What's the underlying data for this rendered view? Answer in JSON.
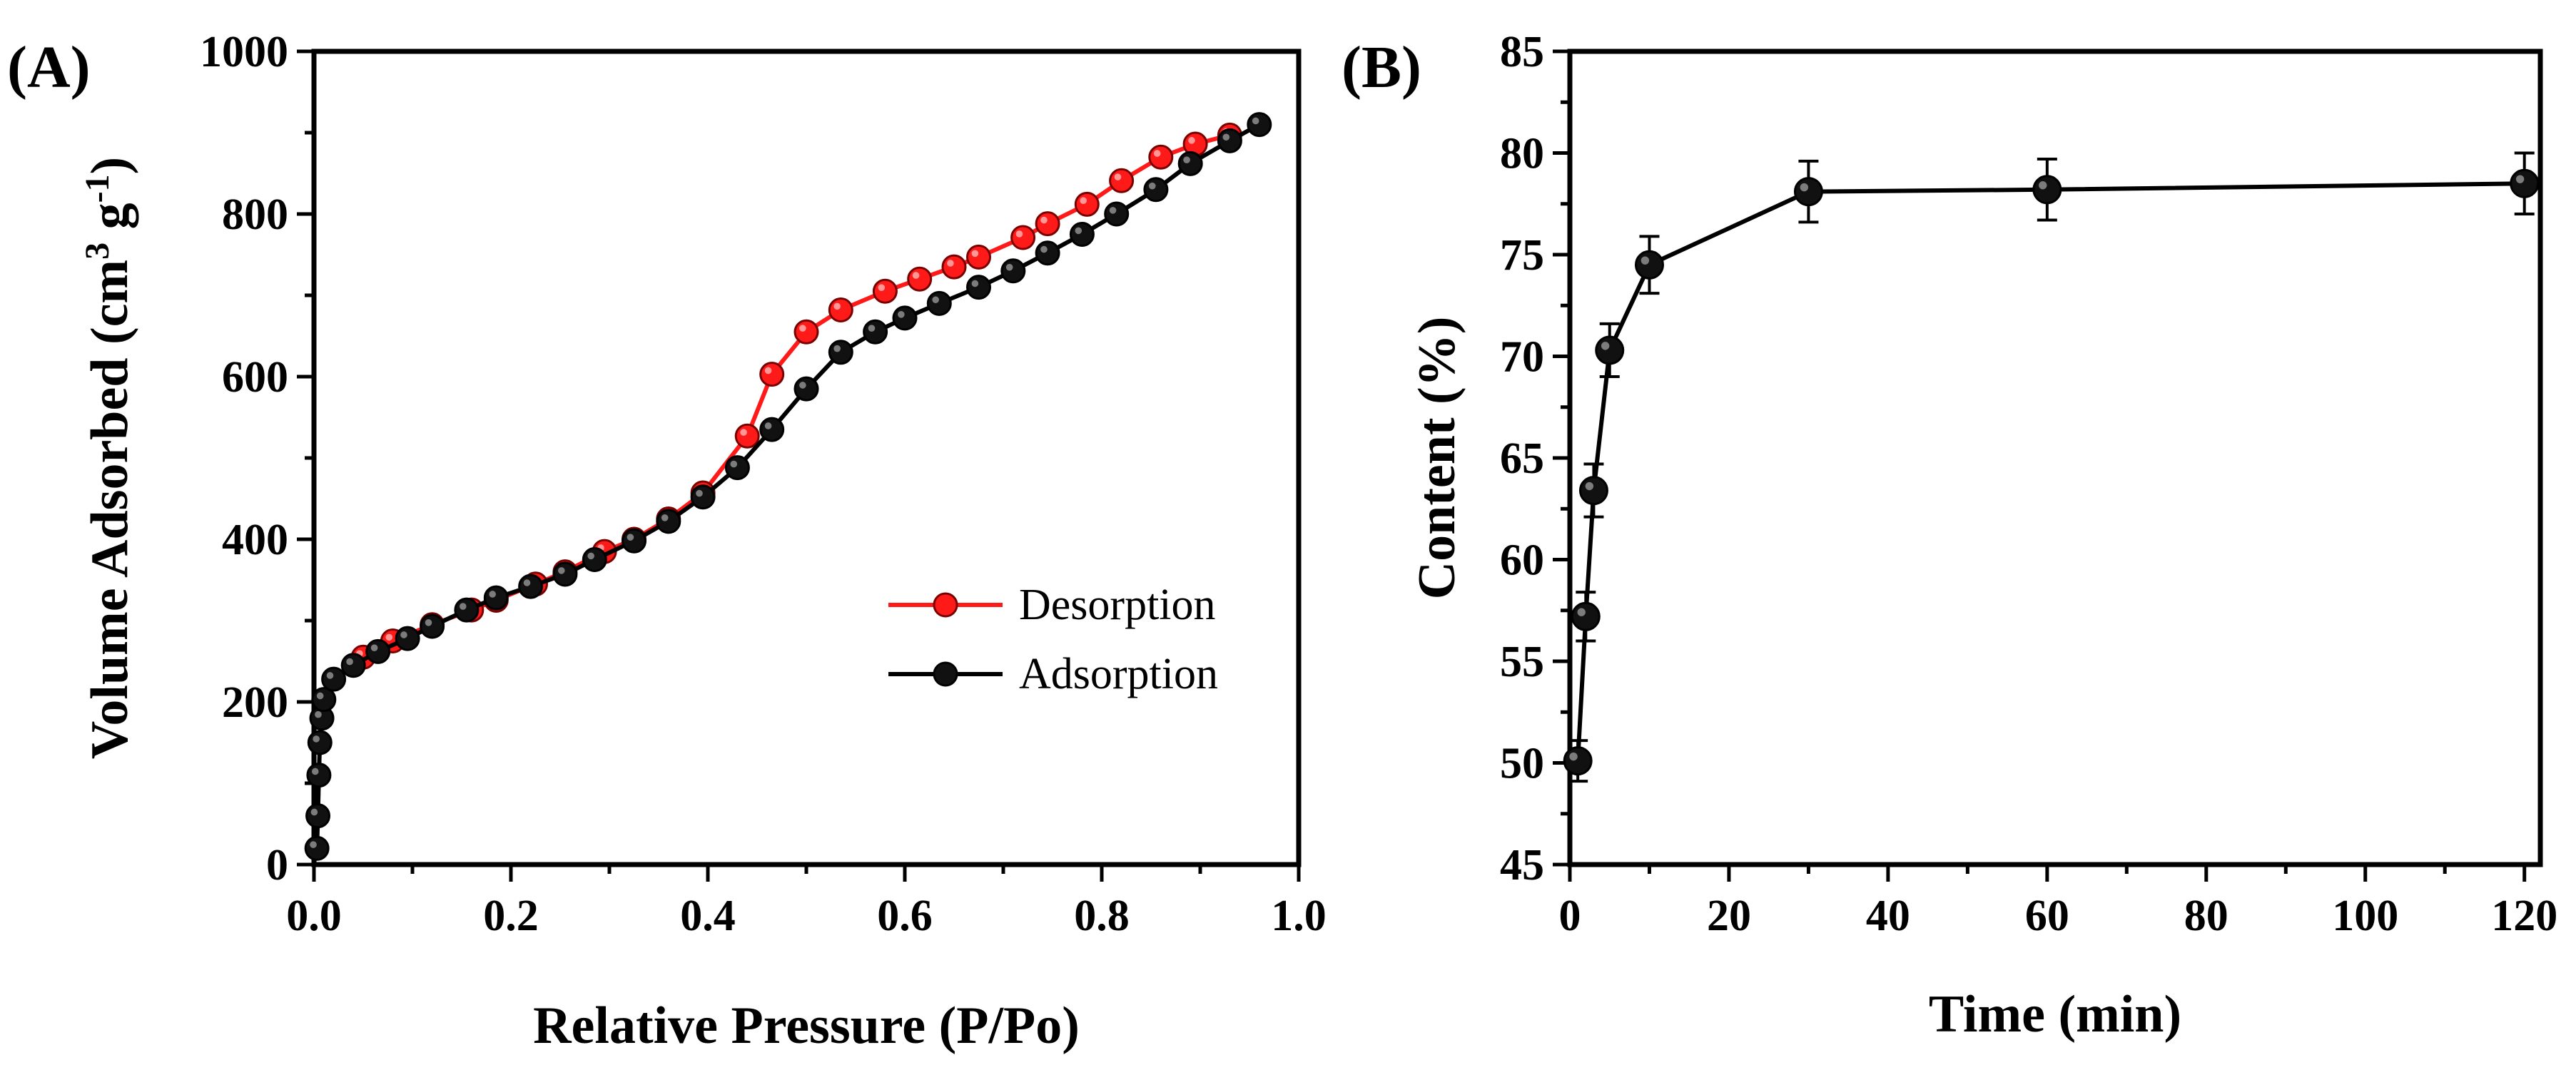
{
  "figure": {
    "panels": [
      "(A)",
      "(B)"
    ]
  },
  "chart_data": [
    {
      "type": "line",
      "panel_label": "(A)",
      "xlabel": "Relative Pressure (P/Po)",
      "ylabel_main": "Volume Adsorbed (cm",
      "ylabel_sup1": "3",
      "ylabel_mid": " g",
      "ylabel_sup2": "-1",
      "ylabel_end": ")",
      "xlim": [
        0.0,
        1.0
      ],
      "ylim": [
        0,
        1000
      ],
      "x_ticks": [
        0.0,
        0.2,
        0.4,
        0.6,
        0.8,
        1.0
      ],
      "x_tick_labels": [
        "0.0",
        "0.2",
        "0.4",
        "0.6",
        "0.8",
        "1.0"
      ],
      "y_ticks": [
        0,
        200,
        400,
        600,
        800,
        1000
      ],
      "y_tick_labels": [
        "0",
        "200",
        "400",
        "600",
        "800",
        "1000"
      ],
      "legend_position": "lower-right",
      "series": [
        {
          "name": "Desorption",
          "color": "#ff1a1a",
          "x": [
            0.05,
            0.08,
            0.12,
            0.16,
            0.185,
            0.225,
            0.255,
            0.295,
            0.325,
            0.36,
            0.395,
            0.44,
            0.465,
            0.5,
            0.535,
            0.58,
            0.615,
            0.65,
            0.675,
            0.72,
            0.745,
            0.785,
            0.82,
            0.86,
            0.895,
            0.93
          ],
          "y": [
            255,
            275,
            295,
            313,
            325,
            345,
            360,
            385,
            400,
            425,
            457,
            527,
            603,
            655,
            682,
            705,
            720,
            735,
            747,
            771,
            788,
            812,
            841,
            870,
            886,
            897
          ]
        },
        {
          "name": "Adsorption",
          "color": "#000000",
          "x": [
            0.003,
            0.004,
            0.005,
            0.006,
            0.008,
            0.01,
            0.02,
            0.04,
            0.065,
            0.095,
            0.12,
            0.155,
            0.185,
            0.22,
            0.255,
            0.285,
            0.325,
            0.36,
            0.395,
            0.43,
            0.465,
            0.5,
            0.535,
            0.57,
            0.6,
            0.635,
            0.675,
            0.71,
            0.745,
            0.78,
            0.815,
            0.855,
            0.89,
            0.93,
            0.96
          ],
          "y": [
            20,
            60,
            110,
            150,
            180,
            203,
            228,
            245,
            262,
            278,
            293,
            313,
            328,
            342,
            357,
            375,
            398,
            422,
            452,
            488,
            535,
            585,
            630,
            655,
            672,
            690,
            710,
            730,
            752,
            775,
            800,
            830,
            862,
            890,
            910
          ]
        }
      ]
    },
    {
      "type": "line",
      "panel_label": "(B)",
      "xlabel": "Time (min)",
      "ylabel": "Content (%)",
      "xlim": [
        0,
        122
      ],
      "ylim": [
        45,
        85
      ],
      "x_ticks": [
        0,
        20,
        40,
        60,
        80,
        100,
        120
      ],
      "x_tick_labels": [
        "0",
        "20",
        "40",
        "60",
        "80",
        "100",
        "120"
      ],
      "y_ticks": [
        45,
        50,
        55,
        60,
        65,
        70,
        75,
        80,
        85
      ],
      "y_tick_labels": [
        "45",
        "50",
        "55",
        "60",
        "65",
        "70",
        "75",
        "80",
        "85"
      ],
      "series": [
        {
          "name": "Content",
          "color": "#000000",
          "x": [
            1,
            2,
            3,
            5,
            10,
            30,
            60,
            120
          ],
          "y": [
            50.1,
            57.2,
            63.4,
            70.3,
            74.5,
            78.1,
            78.2,
            78.5
          ],
          "error": [
            1.0,
            1.2,
            1.3,
            1.3,
            1.4,
            1.5,
            1.5,
            1.5
          ]
        }
      ]
    }
  ]
}
